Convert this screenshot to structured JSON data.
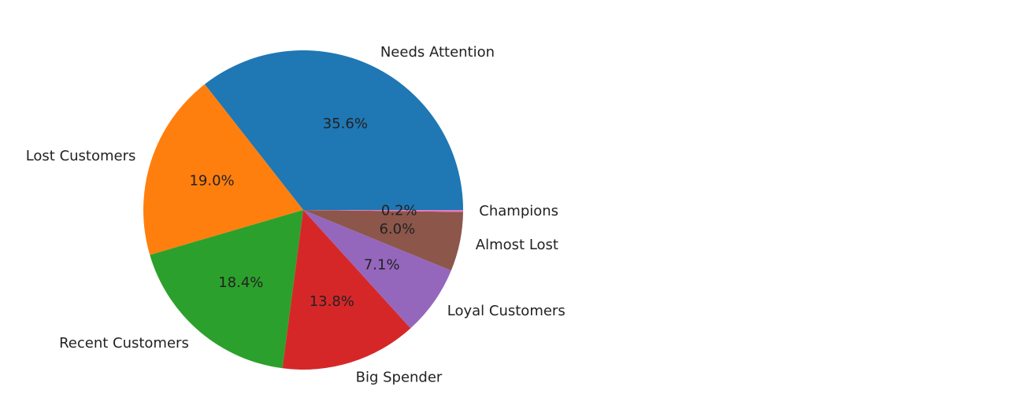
{
  "chart_data": {
    "type": "pie",
    "title": "",
    "start_angle_deg": 0,
    "direction": "counterclockwise",
    "slices": [
      {
        "label": "Needs Attention",
        "value": 35.6,
        "percent_label": "35.6%",
        "color": "#1f77b4"
      },
      {
        "label": "Lost Customers",
        "value": 19.0,
        "percent_label": "19.0%",
        "color": "#ff7f0e"
      },
      {
        "label": "Recent Customers",
        "value": 18.4,
        "percent_label": "18.4%",
        "color": "#2ca02c"
      },
      {
        "label": "Big Spender",
        "value": 13.8,
        "percent_label": "13.8%",
        "color": "#d62728"
      },
      {
        "label": "Loyal Customers",
        "value": 7.1,
        "percent_label": "7.1%",
        "color": "#9467bd"
      },
      {
        "label": "Almost Lost",
        "value": 6.0,
        "percent_label": "6.0%",
        "color": "#8c564b"
      },
      {
        "label": "Champions",
        "value": 0.2,
        "percent_label": "0.2%",
        "color": "#e377c2"
      }
    ]
  }
}
